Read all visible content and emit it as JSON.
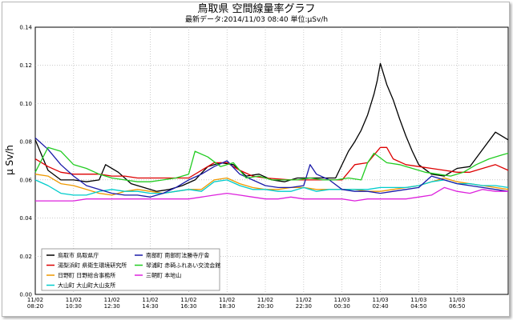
{
  "chart_data": {
    "type": "line",
    "title": "鳥取県 空間線量率グラフ",
    "subtitle": "最新データ:2014/11/03 08:40 単位:μSv/h",
    "ylabel": "μ Sv/h",
    "ylim": [
      0,
      0.14
    ],
    "yticks": [
      "0.00",
      "0.02",
      "0.04",
      "0.06",
      "0.08",
      "0.10",
      "0.12",
      "0.14"
    ],
    "xlim": [
      0,
      148
    ],
    "xticks": [
      {
        "x": 0,
        "l1": "11/02",
        "l2": "08:20"
      },
      {
        "x": 12,
        "l1": "11/02",
        "l2": "10:30"
      },
      {
        "x": 24,
        "l1": "11/02",
        "l2": "12:30"
      },
      {
        "x": 36,
        "l1": "11/02",
        "l2": "14:30"
      },
      {
        "x": 48,
        "l1": "11/02",
        "l2": "16:30"
      },
      {
        "x": 60,
        "l1": "11/02",
        "l2": "18:30"
      },
      {
        "x": 72,
        "l1": "11/02",
        "l2": "20:30"
      },
      {
        "x": 84,
        "l1": "11/02",
        "l2": "22:30"
      },
      {
        "x": 96,
        "l1": "11/03",
        "l2": "00:30"
      },
      {
        "x": 108,
        "l1": "11/03",
        "l2": "02:40"
      },
      {
        "x": 120,
        "l1": "11/03",
        "l2": "04:50"
      },
      {
        "x": 132,
        "l1": "11/03",
        "l2": "06:50"
      }
    ],
    "grid": true,
    "legend_position": "bottom-left",
    "series": [
      {
        "name": "鳥取市 鳥取県庁",
        "color": "#000000",
        "points": [
          [
            0,
            0.081
          ],
          [
            4,
            0.065
          ],
          [
            8,
            0.06
          ],
          [
            12,
            0.06
          ],
          [
            16,
            0.059
          ],
          [
            20,
            0.06
          ],
          [
            22,
            0.068
          ],
          [
            26,
            0.064
          ],
          [
            30,
            0.058
          ],
          [
            34,
            0.056
          ],
          [
            38,
            0.054
          ],
          [
            42,
            0.055
          ],
          [
            46,
            0.057
          ],
          [
            50,
            0.06
          ],
          [
            54,
            0.067
          ],
          [
            58,
            0.069
          ],
          [
            62,
            0.068
          ],
          [
            66,
            0.062
          ],
          [
            70,
            0.063
          ],
          [
            74,
            0.06
          ],
          [
            78,
            0.059
          ],
          [
            82,
            0.061
          ],
          [
            86,
            0.061
          ],
          [
            90,
            0.061
          ],
          [
            94,
            0.061
          ],
          [
            98,
            0.075
          ],
          [
            100,
            0.08
          ],
          [
            102,
            0.086
          ],
          [
            104,
            0.094
          ],
          [
            106,
            0.105
          ],
          [
            107,
            0.112
          ],
          [
            108,
            0.121
          ],
          [
            110,
            0.11
          ],
          [
            112,
            0.102
          ],
          [
            114,
            0.092
          ],
          [
            116,
            0.083
          ],
          [
            118,
            0.075
          ],
          [
            120,
            0.068
          ],
          [
            124,
            0.063
          ],
          [
            128,
            0.062
          ],
          [
            132,
            0.066
          ],
          [
            136,
            0.067
          ],
          [
            140,
            0.076
          ],
          [
            144,
            0.085
          ],
          [
            148,
            0.081
          ]
        ]
      },
      {
        "name": "湯梨浜町 県衛生環境研究所",
        "color": "#dd0000",
        "points": [
          [
            0,
            0.071
          ],
          [
            4,
            0.067
          ],
          [
            8,
            0.064
          ],
          [
            12,
            0.063
          ],
          [
            16,
            0.063
          ],
          [
            20,
            0.063
          ],
          [
            24,
            0.062
          ],
          [
            28,
            0.062
          ],
          [
            32,
            0.061
          ],
          [
            40,
            0.061
          ],
          [
            48,
            0.061
          ],
          [
            52,
            0.065
          ],
          [
            56,
            0.069
          ],
          [
            60,
            0.069
          ],
          [
            64,
            0.065
          ],
          [
            68,
            0.062
          ],
          [
            72,
            0.061
          ],
          [
            80,
            0.06
          ],
          [
            88,
            0.06
          ],
          [
            96,
            0.06
          ],
          [
            100,
            0.068
          ],
          [
            104,
            0.069
          ],
          [
            108,
            0.077
          ],
          [
            110,
            0.077
          ],
          [
            112,
            0.071
          ],
          [
            116,
            0.068
          ],
          [
            120,
            0.067
          ],
          [
            124,
            0.066
          ],
          [
            128,
            0.065
          ],
          [
            132,
            0.064
          ],
          [
            136,
            0.064
          ],
          [
            140,
            0.066
          ],
          [
            144,
            0.068
          ],
          [
            148,
            0.065
          ]
        ]
      },
      {
        "name": "日野町 日野総合事務所",
        "color": "#ee9900",
        "points": [
          [
            0,
            0.063
          ],
          [
            4,
            0.062
          ],
          [
            8,
            0.058
          ],
          [
            12,
            0.057
          ],
          [
            16,
            0.055
          ],
          [
            20,
            0.053
          ],
          [
            24,
            0.052
          ],
          [
            28,
            0.054
          ],
          [
            32,
            0.055
          ],
          [
            36,
            0.054
          ],
          [
            40,
            0.053
          ],
          [
            44,
            0.054
          ],
          [
            48,
            0.055
          ],
          [
            52,
            0.055
          ],
          [
            56,
            0.06
          ],
          [
            60,
            0.061
          ],
          [
            64,
            0.058
          ],
          [
            68,
            0.056
          ],
          [
            72,
            0.055
          ],
          [
            76,
            0.055
          ],
          [
            80,
            0.056
          ],
          [
            84,
            0.056
          ],
          [
            88,
            0.055
          ],
          [
            92,
            0.055
          ],
          [
            96,
            0.055
          ],
          [
            100,
            0.055
          ],
          [
            104,
            0.054
          ],
          [
            108,
            0.054
          ],
          [
            112,
            0.055
          ],
          [
            116,
            0.056
          ],
          [
            120,
            0.057
          ],
          [
            124,
            0.059
          ],
          [
            128,
            0.061
          ],
          [
            132,
            0.059
          ],
          [
            136,
            0.058
          ],
          [
            140,
            0.057
          ],
          [
            144,
            0.056
          ],
          [
            148,
            0.055
          ]
        ]
      },
      {
        "name": "大山町 大山町大山支所",
        "color": "#00cccc",
        "points": [
          [
            0,
            0.06
          ],
          [
            4,
            0.057
          ],
          [
            8,
            0.053
          ],
          [
            12,
            0.052
          ],
          [
            16,
            0.052
          ],
          [
            20,
            0.054
          ],
          [
            24,
            0.055
          ],
          [
            28,
            0.054
          ],
          [
            32,
            0.054
          ],
          [
            36,
            0.053
          ],
          [
            40,
            0.053
          ],
          [
            44,
            0.054
          ],
          [
            48,
            0.055
          ],
          [
            52,
            0.054
          ],
          [
            56,
            0.059
          ],
          [
            60,
            0.06
          ],
          [
            64,
            0.057
          ],
          [
            68,
            0.055
          ],
          [
            72,
            0.055
          ],
          [
            76,
            0.054
          ],
          [
            80,
            0.054
          ],
          [
            84,
            0.056
          ],
          [
            88,
            0.054
          ],
          [
            92,
            0.055
          ],
          [
            96,
            0.055
          ],
          [
            100,
            0.055
          ],
          [
            104,
            0.055
          ],
          [
            108,
            0.056
          ],
          [
            112,
            0.056
          ],
          [
            116,
            0.056
          ],
          [
            120,
            0.057
          ],
          [
            124,
            0.059
          ],
          [
            128,
            0.06
          ],
          [
            132,
            0.058
          ],
          [
            136,
            0.058
          ],
          [
            140,
            0.057
          ],
          [
            144,
            0.057
          ],
          [
            148,
            0.056
          ]
        ]
      },
      {
        "name": "南部町 南部町法勝寺庁舎",
        "color": "#1a1aa8",
        "points": [
          [
            0,
            0.082
          ],
          [
            4,
            0.076
          ],
          [
            8,
            0.068
          ],
          [
            12,
            0.062
          ],
          [
            16,
            0.057
          ],
          [
            20,
            0.055
          ],
          [
            24,
            0.053
          ],
          [
            28,
            0.052
          ],
          [
            32,
            0.052
          ],
          [
            36,
            0.051
          ],
          [
            40,
            0.053
          ],
          [
            44,
            0.056
          ],
          [
            48,
            0.06
          ],
          [
            52,
            0.063
          ],
          [
            56,
            0.067
          ],
          [
            60,
            0.07
          ],
          [
            64,
            0.063
          ],
          [
            68,
            0.06
          ],
          [
            72,
            0.057
          ],
          [
            76,
            0.056
          ],
          [
            80,
            0.056
          ],
          [
            84,
            0.057
          ],
          [
            86,
            0.068
          ],
          [
            88,
            0.063
          ],
          [
            92,
            0.06
          ],
          [
            96,
            0.055
          ],
          [
            100,
            0.054
          ],
          [
            104,
            0.054
          ],
          [
            108,
            0.053
          ],
          [
            112,
            0.054
          ],
          [
            116,
            0.055
          ],
          [
            120,
            0.056
          ],
          [
            124,
            0.062
          ],
          [
            128,
            0.06
          ],
          [
            132,
            0.058
          ],
          [
            136,
            0.057
          ],
          [
            140,
            0.056
          ],
          [
            144,
            0.055
          ],
          [
            148,
            0.054
          ]
        ]
      },
      {
        "name": "琴浦町 赤碕ふれあい交流会館",
        "color": "#22cc22",
        "points": [
          [
            0,
            0.064
          ],
          [
            4,
            0.077
          ],
          [
            8,
            0.075
          ],
          [
            12,
            0.068
          ],
          [
            16,
            0.066
          ],
          [
            20,
            0.063
          ],
          [
            24,
            0.061
          ],
          [
            28,
            0.06
          ],
          [
            32,
            0.059
          ],
          [
            36,
            0.059
          ],
          [
            40,
            0.06
          ],
          [
            44,
            0.061
          ],
          [
            48,
            0.063
          ],
          [
            50,
            0.075
          ],
          [
            54,
            0.072
          ],
          [
            58,
            0.067
          ],
          [
            62,
            0.069
          ],
          [
            66,
            0.061
          ],
          [
            70,
            0.062
          ],
          [
            74,
            0.06
          ],
          [
            78,
            0.06
          ],
          [
            82,
            0.06
          ],
          [
            86,
            0.061
          ],
          [
            90,
            0.06
          ],
          [
            94,
            0.06
          ],
          [
            98,
            0.061
          ],
          [
            102,
            0.06
          ],
          [
            104,
            0.069
          ],
          [
            106,
            0.074
          ],
          [
            110,
            0.069
          ],
          [
            114,
            0.068
          ],
          [
            118,
            0.066
          ],
          [
            122,
            0.064
          ],
          [
            126,
            0.063
          ],
          [
            130,
            0.062
          ],
          [
            134,
            0.064
          ],
          [
            138,
            0.068
          ],
          [
            142,
            0.071
          ],
          [
            146,
            0.073
          ],
          [
            148,
            0.074
          ]
        ]
      },
      {
        "name": "三朝町 本地山",
        "color": "#dd22dd",
        "points": [
          [
            0,
            0.049
          ],
          [
            4,
            0.049
          ],
          [
            8,
            0.049
          ],
          [
            12,
            0.049
          ],
          [
            16,
            0.05
          ],
          [
            20,
            0.05
          ],
          [
            24,
            0.05
          ],
          [
            28,
            0.05
          ],
          [
            32,
            0.05
          ],
          [
            36,
            0.05
          ],
          [
            40,
            0.05
          ],
          [
            44,
            0.05
          ],
          [
            48,
            0.05
          ],
          [
            52,
            0.051
          ],
          [
            56,
            0.052
          ],
          [
            60,
            0.053
          ],
          [
            64,
            0.052
          ],
          [
            68,
            0.051
          ],
          [
            72,
            0.05
          ],
          [
            76,
            0.05
          ],
          [
            80,
            0.051
          ],
          [
            84,
            0.05
          ],
          [
            88,
            0.05
          ],
          [
            92,
            0.05
          ],
          [
            96,
            0.05
          ],
          [
            100,
            0.049
          ],
          [
            104,
            0.05
          ],
          [
            108,
            0.05
          ],
          [
            112,
            0.05
          ],
          [
            116,
            0.05
          ],
          [
            120,
            0.051
          ],
          [
            124,
            0.052
          ],
          [
            128,
            0.056
          ],
          [
            132,
            0.054
          ],
          [
            136,
            0.053
          ],
          [
            140,
            0.055
          ],
          [
            144,
            0.054
          ],
          [
            148,
            0.054
          ]
        ]
      }
    ]
  }
}
